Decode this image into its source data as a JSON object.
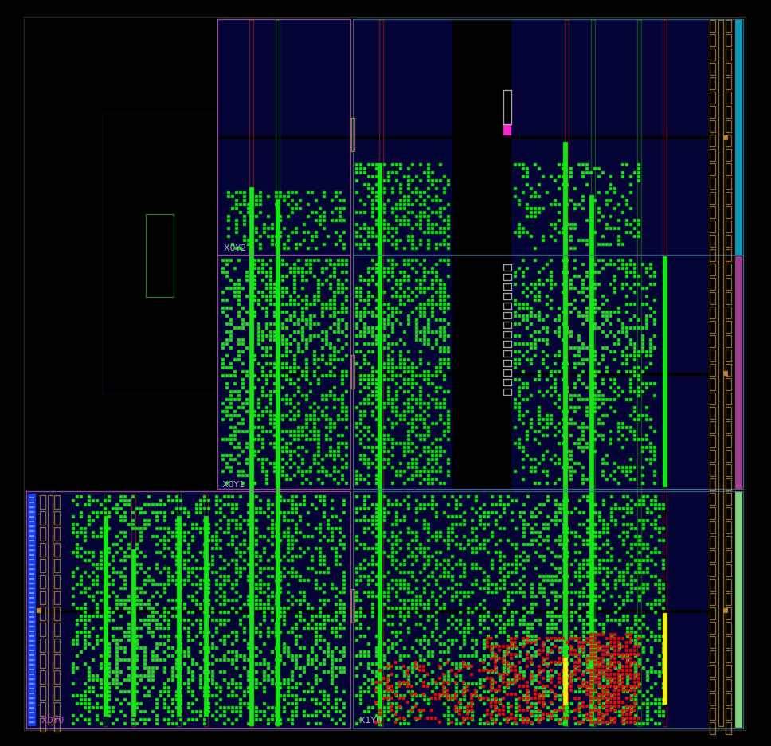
{
  "app": {
    "view": "device-floorplan"
  },
  "colors": {
    "background": "#000000",
    "fabric": "#040536",
    "placed_cell": "#16e616",
    "critical_cell": "#e01010",
    "highlighted_cell": "#f2f20f",
    "selected_cell": "#ff22cc",
    "clock_region_border": "#c060c0",
    "clock_region_border_alt": "#5c7cc0",
    "io_bank_cyan": "#1499b8",
    "io_bank_magenta": "#a04090",
    "io_bank_green": "#86cf7c",
    "column_bram": "#801818",
    "column_dsp": "#106010",
    "column_io": "#b8863a",
    "pblock": "#3a9a3a"
  },
  "clock_regions": [
    {
      "id": "x0y0",
      "label": "X0Y0",
      "label_color": "#c050c0"
    },
    {
      "id": "x1y0",
      "label": "X1Y0",
      "label_color": "#b0b0c8"
    },
    {
      "id": "x0y1",
      "label": "X0Y1",
      "label_color": "#b0b0c8"
    },
    {
      "id": "x0y2",
      "label": "X0Y2",
      "label_color": "#b0b0c8"
    }
  ]
}
